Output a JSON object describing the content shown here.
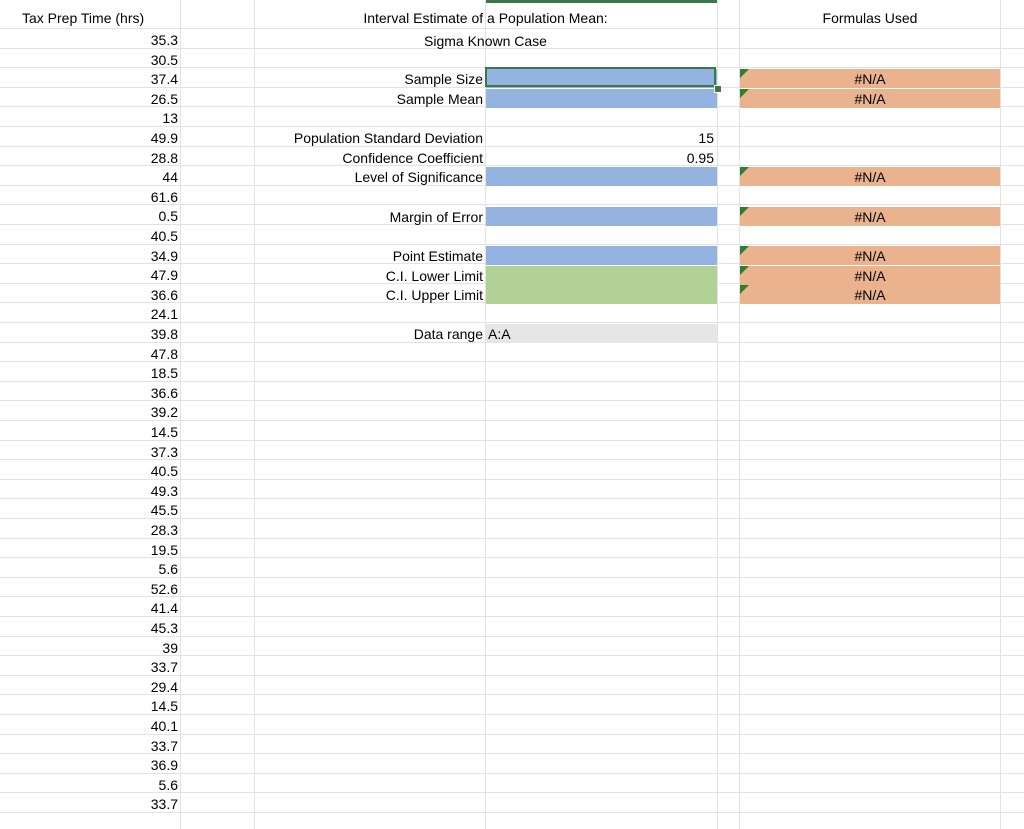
{
  "column_a": {
    "header": "Tax Prep Time (hrs)",
    "values": [
      "35.3",
      "30.5",
      "37.4",
      "26.5",
      "13",
      "49.9",
      "28.8",
      "44",
      "61.6",
      "0.5",
      "40.5",
      "34.9",
      "47.9",
      "36.6",
      "24.1",
      "39.8",
      "47.8",
      "18.5",
      "36.6",
      "39.2",
      "14.5",
      "37.3",
      "40.5",
      "49.3",
      "45.5",
      "28.3",
      "19.5",
      "5.6",
      "52.6",
      "41.4",
      "45.3",
      "39",
      "33.7",
      "29.4",
      "14.5",
      "40.1",
      "33.7",
      "36.9",
      "5.6",
      "33.7"
    ]
  },
  "estimate": {
    "title_line1": "Interval Estimate of a Population Mean:",
    "title_line2": "Sigma Known Case",
    "labels": {
      "sample_size": "Sample Size",
      "sample_mean": "Sample Mean",
      "pop_std_dev": "Population Standard Deviation",
      "conf_coeff": "Confidence Coefficient",
      "level_sig": "Level of Significance",
      "margin_error": "Margin of Error",
      "point_estimate": "Point Estimate",
      "ci_lower": "C.I. Lower Limit",
      "ci_upper": "C.I. Upper Limit",
      "data_range": "Data range"
    },
    "values": {
      "pop_std_dev": "15",
      "conf_coeff": "0.95",
      "data_range": "A:A"
    }
  },
  "formulas": {
    "header": "Formulas Used",
    "sample_size": "#N/A",
    "sample_mean": "#N/A",
    "level_sig": "#N/A",
    "margin_error": "#N/A",
    "point_estimate": "#N/A",
    "ci_lower": "#N/A",
    "ci_upper": "#N/A"
  },
  "colors": {
    "input_blue": "#95b3e0",
    "output_green": "#b1d197",
    "formula_orange": "#ebb28e",
    "selection_green": "#3c7a45"
  }
}
